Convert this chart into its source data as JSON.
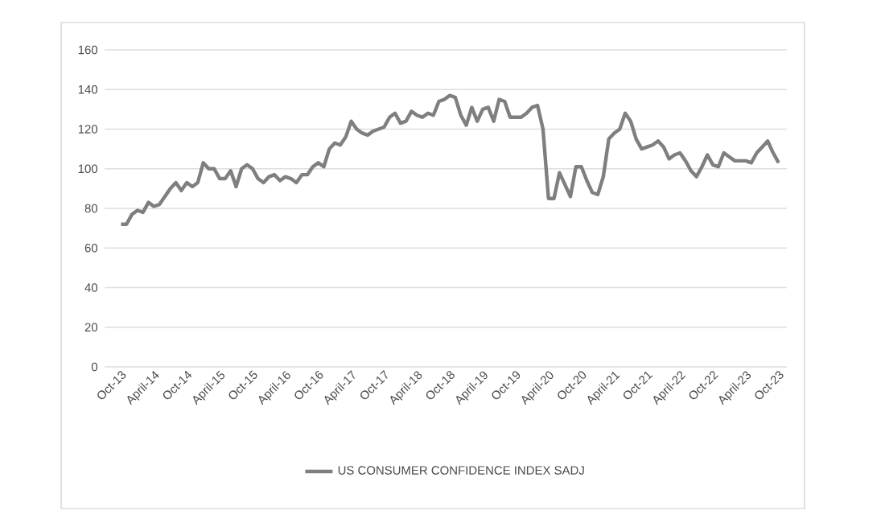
{
  "chart_data": {
    "type": "line",
    "categories": [
      "Oct-13",
      null,
      null,
      null,
      null,
      null,
      "April-14",
      null,
      null,
      null,
      null,
      null,
      "Oct-14",
      null,
      null,
      null,
      null,
      null,
      "April-15",
      null,
      null,
      null,
      null,
      null,
      "Oct-15",
      null,
      null,
      null,
      null,
      null,
      "April-16",
      null,
      null,
      null,
      null,
      null,
      "Oct-16",
      null,
      null,
      null,
      null,
      null,
      "April-17",
      null,
      null,
      null,
      null,
      null,
      "Oct-17",
      null,
      null,
      null,
      null,
      null,
      "April-18",
      null,
      null,
      null,
      null,
      null,
      "Oct-18",
      null,
      null,
      null,
      null,
      null,
      "April-19",
      null,
      null,
      null,
      null,
      null,
      "Oct-19",
      null,
      null,
      null,
      null,
      null,
      "April-20",
      null,
      null,
      null,
      null,
      null,
      "Oct-20",
      null,
      null,
      null,
      null,
      null,
      "April-21",
      null,
      null,
      null,
      null,
      null,
      "Oct-21",
      null,
      null,
      null,
      null,
      null,
      "April-22",
      null,
      null,
      null,
      null,
      null,
      "Oct-22",
      null,
      null,
      null,
      null,
      null,
      "April-23",
      null,
      null,
      null,
      null,
      null,
      "Oct-23"
    ],
    "series": [
      {
        "name": "US CONSUMER CONFIDENCE INDEX SADJ",
        "color": "#7f7f7f",
        "values": [
          72,
          72,
          77,
          79,
          78,
          83,
          81,
          82,
          86,
          90,
          93,
          89,
          93,
          91,
          93,
          103,
          100,
          100,
          95,
          95,
          99,
          91,
          100,
          102,
          100,
          95,
          93,
          96,
          97,
          94,
          96,
          95,
          93,
          97,
          97,
          101,
          103,
          101,
          110,
          113,
          112,
          116,
          124,
          120,
          118,
          117,
          119,
          120,
          121,
          126,
          128,
          123,
          124,
          129,
          127,
          126,
          128,
          127,
          134,
          135,
          137,
          136,
          127,
          122,
          131,
          124,
          130,
          131,
          124,
          135,
          134,
          126,
          126,
          126,
          128,
          131,
          132,
          120,
          85,
          85,
          98,
          92,
          86,
          101,
          101,
          94,
          88,
          87,
          96,
          115,
          118,
          120,
          128,
          124,
          115,
          110,
          111,
          112,
          114,
          111,
          105,
          107,
          108,
          104,
          99,
          96,
          101,
          107,
          102,
          101,
          108,
          106,
          104,
          104,
          104,
          103,
          108,
          111,
          114,
          108,
          103
        ]
      }
    ],
    "ylim": [
      0,
      160
    ],
    "yticks": [
      0,
      20,
      40,
      60,
      80,
      100,
      120,
      140,
      160
    ],
    "grid": "y",
    "legend": "bottom",
    "line_style": "solid",
    "marker": "none"
  }
}
